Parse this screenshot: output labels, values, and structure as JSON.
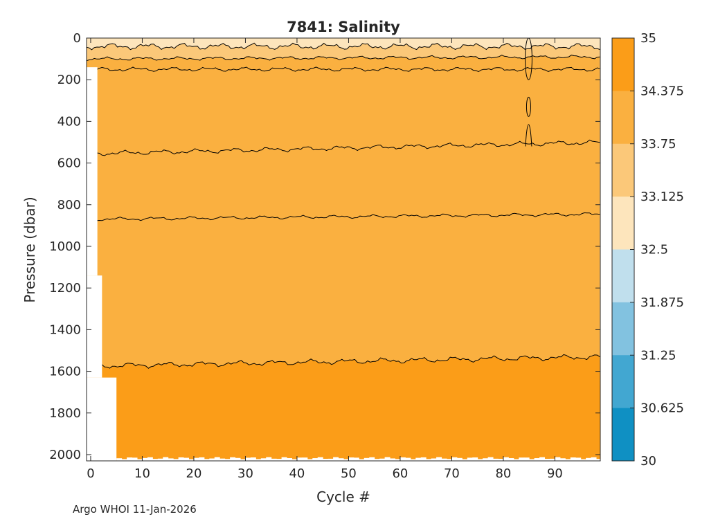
{
  "chart_data": {
    "type": "heatmap",
    "title": "7841:  Salinity",
    "xlabel": "Cycle #",
    "ylabel": "Pressure (dbar)",
    "xlim": [
      -0.8,
      98.8
    ],
    "ylim": [
      0,
      2030
    ],
    "y_reversed": true,
    "x_ticks": [
      0,
      10,
      20,
      30,
      40,
      50,
      60,
      70,
      80,
      90
    ],
    "y_ticks": [
      0,
      200,
      400,
      600,
      800,
      1000,
      1200,
      1400,
      1600,
      1800,
      2000
    ],
    "colorbar": {
      "labels": [
        "35",
        "34.375",
        "33.75",
        "33.125",
        "32.5",
        "31.875",
        "31.25",
        "30.625",
        "30"
      ],
      "levels": [
        35,
        34.375,
        33.75,
        33.125,
        32.5,
        31.875,
        31.25,
        30.625,
        30
      ],
      "colors": [
        "#fb9d18",
        "#fab040",
        "#fbc879",
        "#fde5bc",
        "#c0dfed",
        "#82c2e0",
        "#42a7d1",
        "#0f90c3"
      ]
    },
    "contours": [
      {
        "level": 32.5,
        "pressure_approx": 50
      },
      {
        "level": 33.125,
        "pressure_approx": 100
      },
      {
        "level": 33.75,
        "pressure_approx": 150
      },
      {
        "level": 34.375,
        "pressure_approx": 1560
      }
    ],
    "footer": "Argo WHOI 11-Jan-2026"
  }
}
